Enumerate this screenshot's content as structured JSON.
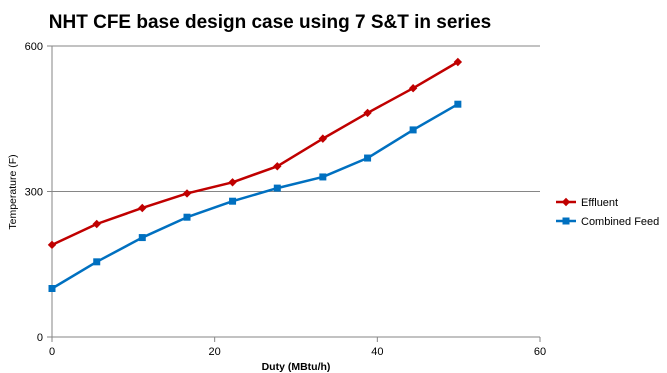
{
  "chart_data": {
    "type": "line",
    "title": "NHT CFE base design case using 7 S&T in series",
    "xlabel": "Duty (MBtu/h)",
    "ylabel": "Temperature (F)",
    "xlim": [
      0,
      60
    ],
    "ylim": [
      0,
      600
    ],
    "xticks": [
      0,
      20,
      40,
      60
    ],
    "yticks": [
      0,
      300,
      600
    ],
    "grid": "horizontal",
    "legend_position": "right",
    "series": [
      {
        "name": "Effluent",
        "color": "#C00000",
        "marker": "diamond",
        "x": [
          0,
          5.5,
          11.1,
          16.6,
          22.2,
          27.7,
          33.3,
          38.8,
          44.4,
          49.9
        ],
        "y": [
          190,
          233,
          266,
          296,
          319,
          352,
          409,
          462,
          513,
          567
        ]
      },
      {
        "name": "Combined Feed",
        "color": "#0070C0",
        "marker": "square",
        "x": [
          0,
          5.5,
          11.1,
          16.6,
          22.2,
          27.7,
          33.3,
          38.8,
          44.4,
          49.9
        ],
        "y": [
          100,
          155,
          205,
          247,
          280,
          307,
          330,
          369,
          427,
          480
        ]
      }
    ]
  }
}
